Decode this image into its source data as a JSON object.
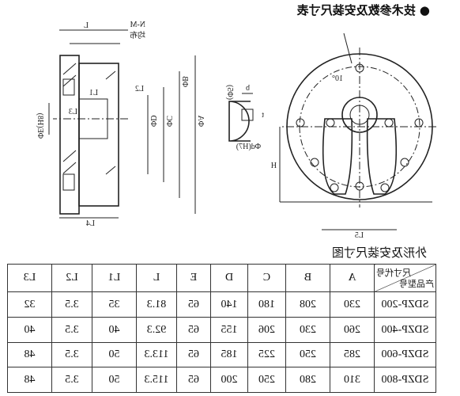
{
  "header": {
    "title": "技术参数及安装尺寸表"
  },
  "figure": {
    "caption": "外形及安装尺寸图",
    "labels": {
      "n_m": "N-M",
      "uniform": "均布",
      "phi_a": "ΦA",
      "phi_b": "ΦB",
      "phi_c": "ΦC",
      "phi_d": "ΦD",
      "phi_e": "ΦE(H8)",
      "l": "L",
      "l1": "L1",
      "l2": "L2",
      "l3": "L3",
      "l4": "L4",
      "b": "b",
      "t": "t",
      "phi5": "(Φ5)",
      "phi_d_h7": "Φd(H7)",
      "angle": "10°",
      "h": "H",
      "l5": "L5"
    }
  },
  "table": {
    "corner_top": "尺寸代号",
    "corner_bottom": "产品型号",
    "columns": [
      "A",
      "B",
      "C",
      "D",
      "E",
      "L",
      "L1",
      "L2",
      "L3"
    ],
    "rows": [
      [
        "SDZP-200",
        230,
        208,
        180,
        140,
        65,
        81.3,
        35,
        3.5,
        32
      ],
      [
        "SDZP-400",
        260,
        230,
        206,
        155,
        65,
        92.3,
        40,
        3.5,
        40
      ],
      [
        "SDZP-600",
        285,
        250,
        225,
        185,
        65,
        113.3,
        50,
        3.5,
        48
      ],
      [
        "SDZP-800",
        310,
        280,
        250,
        200,
        65,
        115.3,
        50,
        3.5,
        48
      ]
    ]
  }
}
